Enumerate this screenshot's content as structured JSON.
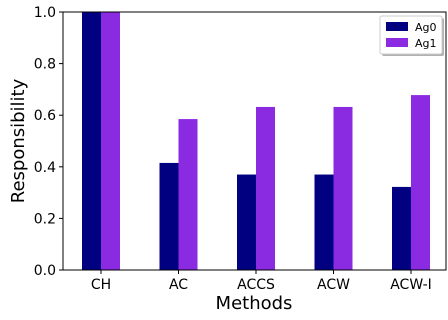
{
  "chart_data": {
    "type": "bar",
    "title": "",
    "xlabel": "Methods",
    "ylabel": "Responsibility",
    "categories": [
      "CH",
      "AC",
      "ACCS",
      "ACW",
      "ACW-I"
    ],
    "series": [
      {
        "name": "Ag0",
        "color": "#000080",
        "values": [
          1.0,
          0.415,
          0.37,
          0.37,
          0.322
        ]
      },
      {
        "name": "Ag1",
        "color": "#8a2be2",
        "values": [
          1.0,
          0.585,
          0.632,
          0.632,
          0.678
        ]
      }
    ],
    "ylim": [
      0,
      1.0
    ],
    "yticks": [
      "0.0",
      "0.2",
      "0.4",
      "0.6",
      "0.8",
      "1.0"
    ],
    "grid": false,
    "legend_position": "top-right"
  }
}
